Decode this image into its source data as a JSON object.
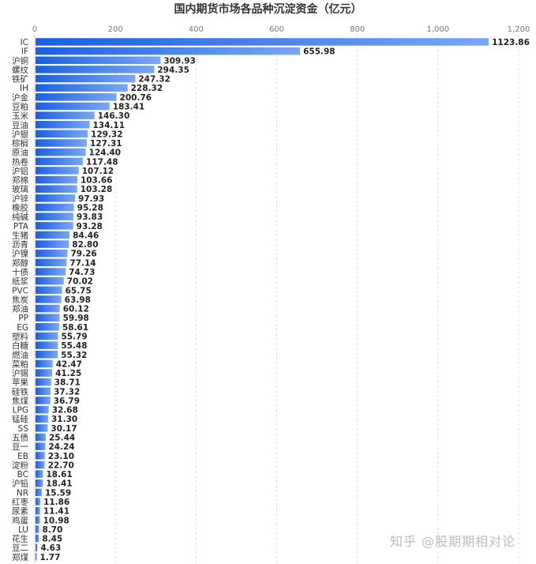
{
  "chart_data": {
    "type": "bar",
    "orientation": "horizontal",
    "title": "国内期货市场各品种沉淀资金（亿元）",
    "xlabel": "",
    "ylabel": "",
    "xlim": [
      0,
      1200
    ],
    "x_ticks": [
      "0",
      "200",
      "400",
      "600",
      "800",
      "1,000",
      "1,200"
    ],
    "x_tick_values": [
      0,
      200,
      400,
      600,
      800,
      1000,
      1200
    ],
    "x_axis_position": "top",
    "grid": "vertical dashed",
    "bar_color_start": "#1a5fe0",
    "bar_color_end": "#7aa6f5",
    "categories": [
      "IC",
      "IF",
      "沪铜",
      "螺纹",
      "铁矿",
      "IH",
      "沪金",
      "豆粕",
      "玉米",
      "豆油",
      "沪银",
      "棕榈",
      "原油",
      "热卷",
      "沪铝",
      "郑棉",
      "玻璃",
      "沪锌",
      "橡胶",
      "纯碱",
      "PTA",
      "生猪",
      "沥青",
      "沪镍",
      "郑醇",
      "十债",
      "纸浆",
      "PVC",
      "焦炭",
      "郑油",
      "PP",
      "EG",
      "塑料",
      "白糖",
      "燃油",
      "菜粕",
      "沪锡",
      "苹果",
      "硅铁",
      "焦煤",
      "LPG",
      "锰硅",
      "SS",
      "五债",
      "豆一",
      "EB",
      "淀粉",
      "BC",
      "沪铅",
      "NR",
      "红枣",
      "尿素",
      "鸡蛋",
      "LU",
      "花生",
      "豆二",
      "郑煤"
    ],
    "values": [
      1123.86,
      655.98,
      309.93,
      294.35,
      247.32,
      228.32,
      200.76,
      183.41,
      146.3,
      134.11,
      129.32,
      127.31,
      124.4,
      117.48,
      107.12,
      103.66,
      103.28,
      97.93,
      95.28,
      93.83,
      93.28,
      84.46,
      82.8,
      79.26,
      77.14,
      74.73,
      70.02,
      65.75,
      63.98,
      60.12,
      59.98,
      58.61,
      55.79,
      55.48,
      55.32,
      42.47,
      41.25,
      38.71,
      37.32,
      36.79,
      32.68,
      31.3,
      30.17,
      25.44,
      24.24,
      23.1,
      22.7,
      18.61,
      18.41,
      15.59,
      11.86,
      11.41,
      10.98,
      8.7,
      8.45,
      4.63,
      1.77
    ],
    "value_labels": [
      "1123.86",
      "655.98",
      "309.93",
      "294.35",
      "247.32",
      "228.32",
      "200.76",
      "183.41",
      "146.30",
      "134.11",
      "129.32",
      "127.31",
      "124.40",
      "117.48",
      "107.12",
      "103.66",
      "103.28",
      "97.93",
      "95.28",
      "93.83",
      "93.28",
      "84.46",
      "82.80",
      "79.26",
      "77.14",
      "74.73",
      "70.02",
      "65.75",
      "63.98",
      "60.12",
      "59.98",
      "58.61",
      "55.79",
      "55.48",
      "55.32",
      "42.47",
      "41.25",
      "38.71",
      "37.32",
      "36.79",
      "32.68",
      "31.30",
      "30.17",
      "25.44",
      "24.24",
      "23.10",
      "22.70",
      "18.61",
      "18.41",
      "15.59",
      "11.86",
      "11.41",
      "10.98",
      "8.70",
      "8.45",
      "4.63",
      "1.77"
    ]
  },
  "watermark": "知乎 @股期期相对论"
}
